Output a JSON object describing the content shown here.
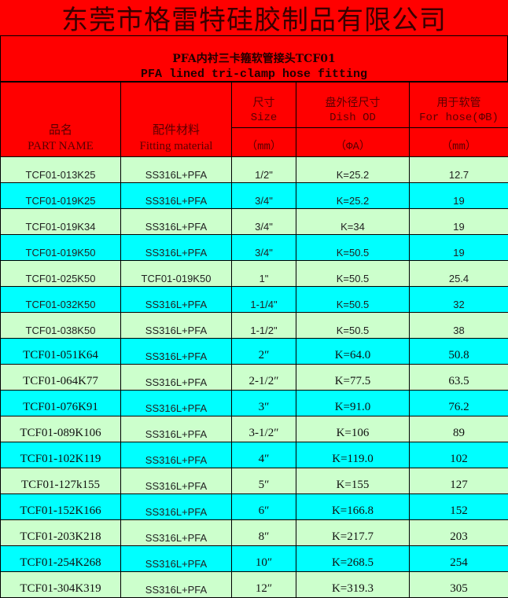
{
  "company": "东莞市格雷特硅胶制品有限公司",
  "title_cn": "PFA内衬三卡箍软管接头TCF01",
  "title_en": "PFA lined tri-clamp hose fitting",
  "headers": {
    "part_cn": "品名",
    "part_en": "PART NAME",
    "material_cn": "配件材料",
    "material_en": "Fitting material",
    "size_cn": "尺寸",
    "size_en": "Size",
    "size_unit": "（mm）",
    "dish_cn": "盘外径尺寸",
    "dish_en": "Dish OD",
    "dish_unit": "（ΦA）",
    "hose_cn": "用于软管",
    "hose_en": "For hose(ΦB)",
    "hose_unit": "（mm）"
  },
  "colors": {
    "header": "#ff0000",
    "row_green": "#ccffcc",
    "row_cyan": "#00ffff"
  },
  "rows": [
    [
      "TCF01-013K25",
      "SS316L+PFA",
      "1/2\"",
      "K=25.2",
      "12.7"
    ],
    [
      "TCF01-019K25",
      "SS316L+PFA",
      "3/4\"",
      "K=25.2",
      "19"
    ],
    [
      "TCF01-019K34",
      "SS316L+PFA",
      "3/4\"",
      "K=34",
      "19"
    ],
    [
      "TCF01-019K50",
      "SS316L+PFA",
      "3/4\"",
      "K=50.5",
      "19"
    ],
    [
      "TCF01-025K50",
      "TCF01-019K50",
      "1\"",
      "K=50.5",
      "25.4"
    ],
    [
      "TCF01-032K50",
      "SS316L+PFA",
      "1-1/4\"",
      "K=50.5",
      "32"
    ],
    [
      "TCF01-038K50",
      "SS316L+PFA",
      "1-1/2\"",
      "K=50.5",
      "38"
    ],
    [
      "TCF01-051K64",
      "SS316L+PFA",
      "2″",
      "K=64.0",
      "50.8"
    ],
    [
      "TCF01-064K77",
      "SS316L+PFA",
      "2-1/2″",
      "K=77.5",
      "63.5"
    ],
    [
      "TCF01-076K91",
      "SS316L+PFA",
      "3″",
      "K=91.0",
      "76.2"
    ],
    [
      "TCF01-089K106",
      "SS316L+PFA",
      "3-1/2″",
      "K=106",
      "89"
    ],
    [
      "TCF01-102K119",
      "SS316L+PFA",
      "4″",
      "K=119.0",
      "102"
    ],
    [
      "TCF01-127k155",
      "SS316L+PFA",
      "5″",
      "K=155",
      "127"
    ],
    [
      "TCF01-152K166",
      "SS316L+PFA",
      "6″",
      "K=166.8",
      "152"
    ],
    [
      "TCF01-203K218",
      "SS316L+PFA",
      "8″",
      "K=217.7",
      "203"
    ],
    [
      "TCF01-254K268",
      "SS316L+PFA",
      "10″",
      "K=268.5",
      "254"
    ],
    [
      "TCF01-304K319",
      "SS316L+PFA",
      "12″",
      "K=319.3",
      "305"
    ]
  ]
}
